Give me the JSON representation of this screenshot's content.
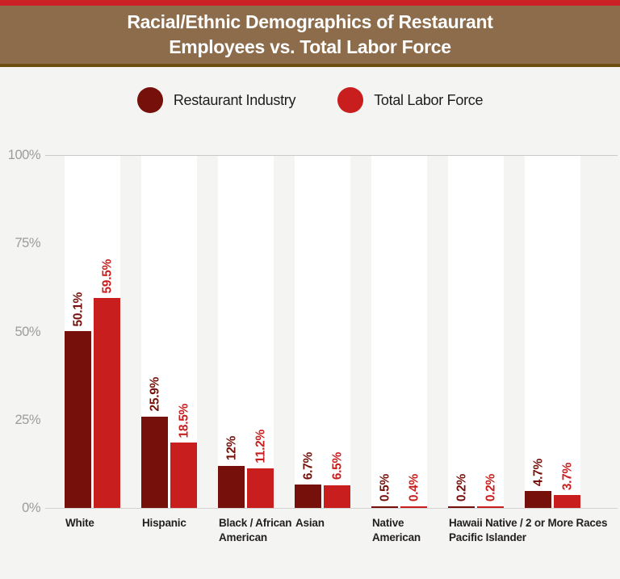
{
  "banner": {
    "title": "Racial/Ethnic Demographics of Restaurant\nEmployees vs. Total Labor Force"
  },
  "legend": {
    "items": [
      {
        "label": "Restaurant Industry",
        "color": "#75100a"
      },
      {
        "label": "Total Labor Force",
        "color": "#c91e1e"
      }
    ]
  },
  "colors": {
    "accent_red_strip": "#cc2027",
    "banner_brown": "#8c6c4b",
    "banner_underline": "#6d4d10",
    "background": "#f4f4f3",
    "band_white": "#ffffff",
    "tick_gray": "#9c9c9c",
    "category_label": "#231f20"
  },
  "chart_data": {
    "type": "bar",
    "title": "Racial/Ethnic Demographics of Restaurant Employees vs. Total Labor Force",
    "categories": [
      "White",
      "Hispanic",
      "Black / African\nAmerican",
      "Asian",
      "Native\nAmerican",
      "Hawaii Native /\nPacific Islander",
      "2 or More Races"
    ],
    "series": [
      {
        "name": "Restaurant Industry",
        "color": "#75100a",
        "values": [
          50.1,
          25.9,
          12,
          6.7,
          0.5,
          0.2,
          4.7
        ],
        "labels": [
          "50.1%",
          "25.9%",
          "12%",
          "6.7%",
          "0.5%",
          "0.2%",
          "4.7%"
        ]
      },
      {
        "name": "Total Labor Force",
        "color": "#c91e1e",
        "values": [
          59.5,
          18.5,
          11.2,
          6.5,
          0.4,
          0.2,
          3.7
        ],
        "labels": [
          "59.5%",
          "18.5%",
          "11.2%",
          "6.5%",
          "0.4%",
          "0.2%",
          "3.7%"
        ]
      }
    ],
    "y_axis": {
      "ticks": [
        {
          "label": "100%",
          "value": 100
        },
        {
          "label": "75%",
          "value": 75
        },
        {
          "label": "50%",
          "value": 50
        },
        {
          "label": "25%",
          "value": 25
        },
        {
          "label": "0%",
          "value": 0
        }
      ],
      "ylim": [
        0,
        100
      ]
    },
    "grid": "line at 100% and baseline at 0% only",
    "legend_position": "top",
    "value_label_orientation": "vertical-bottom-to-top"
  }
}
